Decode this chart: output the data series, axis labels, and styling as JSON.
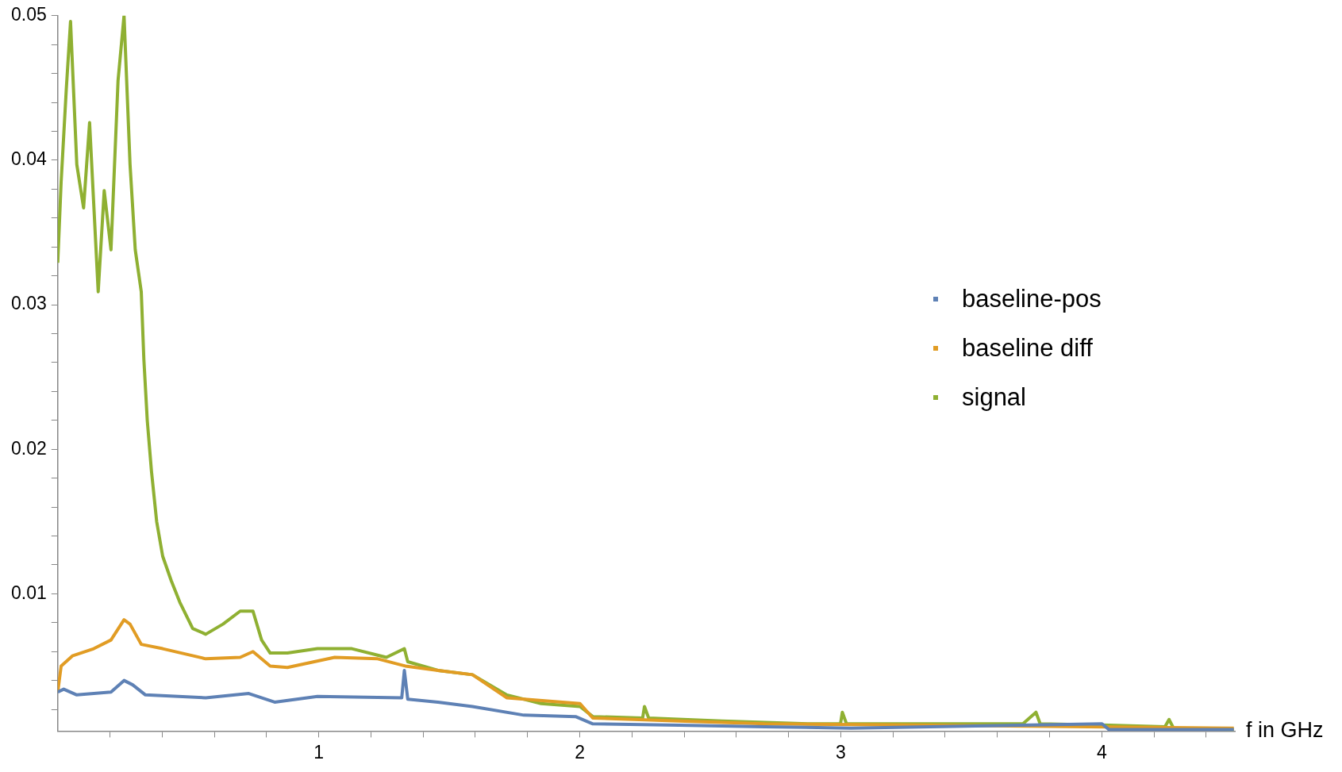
{
  "chart_data": {
    "type": "line",
    "xlabel": "f in GHz",
    "xlim": [
      0,
      4.51
    ],
    "ylim": [
      0.0005,
      0.05
    ],
    "xticks": [
      {
        "value": 0.2,
        "label": null
      },
      {
        "value": 0.4,
        "label": null
      },
      {
        "value": 0.6,
        "label": null
      },
      {
        "value": 0.8,
        "label": null
      },
      1,
      {
        "value": 1.2,
        "label": null
      },
      {
        "value": 1.4,
        "label": null
      },
      {
        "value": 1.6,
        "label": null
      },
      {
        "value": 1.8,
        "label": null
      },
      2,
      {
        "value": 2.2,
        "label": null
      },
      {
        "value": 2.4,
        "label": null
      },
      {
        "value": 2.6,
        "label": null
      },
      {
        "value": 2.8,
        "label": null
      },
      3,
      {
        "value": 3.2,
        "label": null
      },
      {
        "value": 3.4,
        "label": null
      },
      {
        "value": 3.6,
        "label": null
      },
      {
        "value": 3.8,
        "label": null
      },
      4,
      {
        "value": 4.2,
        "label": null
      },
      {
        "value": 4.4,
        "label": null
      }
    ],
    "yticks": [
      {
        "value": 0.002,
        "label": null
      },
      {
        "value": 0.004,
        "label": null
      },
      {
        "value": 0.006,
        "label": null
      },
      {
        "value": 0.008,
        "label": null
      },
      0.01,
      {
        "value": 0.012,
        "label": null
      },
      {
        "value": 0.014,
        "label": null
      },
      {
        "value": 0.016,
        "label": null
      },
      {
        "value": 0.018,
        "label": null
      },
      0.02,
      {
        "value": 0.022,
        "label": null
      },
      {
        "value": 0.024,
        "label": null
      },
      {
        "value": 0.026,
        "label": null
      },
      {
        "value": 0.028,
        "label": null
      },
      0.03,
      {
        "value": 0.032,
        "label": null
      },
      {
        "value": 0.034,
        "label": null
      },
      {
        "value": 0.036,
        "label": null
      },
      {
        "value": 0.038,
        "label": null
      },
      0.04,
      {
        "value": 0.042,
        "label": null
      },
      {
        "value": 0.044,
        "label": null
      },
      {
        "value": 0.046,
        "label": null
      },
      {
        "value": 0.048,
        "label": null
      },
      0.05
    ],
    "grid": false,
    "legend": "right",
    "marker": "none",
    "line_style": "solid",
    "series": [
      {
        "name": "baseline-pos",
        "color": "#5e81b5",
        "x": [
          0,
          0.023,
          0.073,
          0.204,
          0.254,
          0.287,
          0.336,
          0.567,
          0.732,
          0.831,
          0.995,
          1.318,
          1.328,
          1.341,
          1.457,
          1.589,
          1.786,
          1.984,
          2.05,
          2.38,
          2.709,
          3.039,
          4.001,
          4.028,
          4.506
        ],
        "values": [
          0.0032,
          0.0034,
          0.003,
          0.0032,
          0.004,
          0.0037,
          0.003,
          0.0028,
          0.0031,
          0.0025,
          0.0029,
          0.0028,
          0.0047,
          0.0027,
          0.0025,
          0.0022,
          0.0016,
          0.0015,
          0.001,
          0.0009,
          0.0008,
          0.0007,
          0.001,
          0.0006,
          0.0006
        ]
      },
      {
        "name": "baseline diff",
        "color": "#e19c24",
        "x": [
          0,
          0.013,
          0.056,
          0.138,
          0.204,
          0.254,
          0.277,
          0.32,
          0.402,
          0.567,
          0.699,
          0.748,
          0.814,
          0.88,
          1.061,
          1.226,
          1.332,
          1.457,
          1.589,
          1.721,
          2.001,
          2.05,
          2.38,
          2.709,
          3.369,
          4.506
        ],
        "values": [
          0.0032,
          0.005,
          0.0057,
          0.0062,
          0.0068,
          0.0082,
          0.0079,
          0.0065,
          0.0062,
          0.0055,
          0.0056,
          0.006,
          0.005,
          0.0049,
          0.0056,
          0.0055,
          0.005,
          0.0047,
          0.0044,
          0.0028,
          0.0024,
          0.0014,
          0.0012,
          0.001,
          0.0009,
          0.0007
        ]
      },
      {
        "name": "signal",
        "color": "#8fb032",
        "x": [
          0,
          0.013,
          0.033,
          0.049,
          0.073,
          0.099,
          0.122,
          0.155,
          0.178,
          0.204,
          0.231,
          0.254,
          0.277,
          0.297,
          0.32,
          0.33,
          0.343,
          0.359,
          0.379,
          0.402,
          0.435,
          0.468,
          0.517,
          0.567,
          0.633,
          0.699,
          0.748,
          0.781,
          0.814,
          0.88,
          0.995,
          1.127,
          1.259,
          1.328,
          1.341,
          1.457,
          1.589,
          1.721,
          1.852,
          2.001,
          2.05,
          2.241,
          2.248,
          2.264,
          2.545,
          2.874,
          2.999,
          3.006,
          3.022,
          3.698,
          3.748,
          3.764,
          4.028,
          4.242,
          4.258,
          4.275,
          4.506
        ],
        "values": [
          0.0329,
          0.0385,
          0.045,
          0.0496,
          0.0397,
          0.0367,
          0.0426,
          0.0309,
          0.0379,
          0.0338,
          0.0455,
          0.05,
          0.0397,
          0.0338,
          0.0309,
          0.0262,
          0.022,
          0.0185,
          0.015,
          0.0126,
          0.0109,
          0.0094,
          0.0076,
          0.0072,
          0.0079,
          0.0088,
          0.0088,
          0.0068,
          0.0059,
          0.0059,
          0.0062,
          0.0062,
          0.0056,
          0.0062,
          0.0053,
          0.0047,
          0.0044,
          0.003,
          0.0024,
          0.0022,
          0.0015,
          0.0014,
          0.0022,
          0.0014,
          0.0012,
          0.001,
          0.001,
          0.0018,
          0.001,
          0.001,
          0.0018,
          0.001,
          0.0009,
          0.0008,
          0.0013,
          0.0007,
          0.0006
        ]
      }
    ]
  }
}
